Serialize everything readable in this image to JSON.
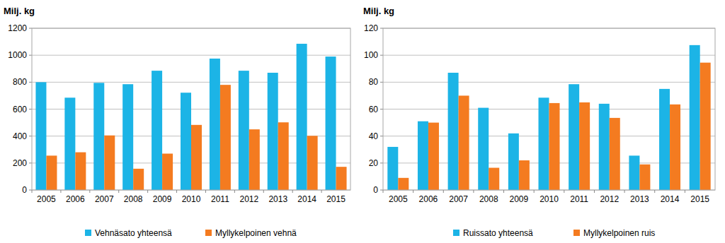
{
  "chart_data": [
    {
      "type": "bar",
      "ylabel": "Milj. kg",
      "categories": [
        "2005",
        "2006",
        "2007",
        "2008",
        "2009",
        "2010",
        "2011",
        "2012",
        "2013",
        "2014",
        "2015"
      ],
      "series": [
        {
          "name": "Vehnäsato yhteensä",
          "color": "#1cb4e6",
          "values": [
            800,
            685,
            795,
            785,
            885,
            722,
            975,
            885,
            870,
            1085,
            990
          ]
        },
        {
          "name": "Myllykelpoinen vehnä",
          "color": "#f47b20",
          "values": [
            255,
            280,
            405,
            158,
            270,
            483,
            780,
            450,
            502,
            402,
            172
          ]
        }
      ],
      "ylim": [
        0,
        1200
      ],
      "yticks": [
        0,
        200,
        400,
        600,
        800,
        1000,
        1200
      ],
      "grid": true,
      "legend": "bottom"
    },
    {
      "type": "bar",
      "ylabel": "Milj. kg",
      "categories": [
        "2005",
        "2006",
        "2007",
        "2008",
        "2009",
        "2010",
        "2011",
        "2012",
        "2013",
        "2014",
        "2015"
      ],
      "series": [
        {
          "name": "Ruissato yhteensä",
          "color": "#1cb4e6",
          "values": [
            32,
            51,
            87,
            61,
            42,
            68.5,
            78.5,
            64,
            25.5,
            75,
            107.5
          ]
        },
        {
          "name": "Myllykelpoinen ruis",
          "color": "#f47b20",
          "values": [
            9,
            50,
            70,
            16.5,
            22,
            64.5,
            65,
            53.5,
            19,
            63.5,
            94.5
          ]
        }
      ],
      "ylim": [
        0,
        120
      ],
      "yticks": [
        0,
        20,
        40,
        60,
        80,
        100,
        120
      ],
      "grid": true,
      "legend": "bottom"
    }
  ]
}
